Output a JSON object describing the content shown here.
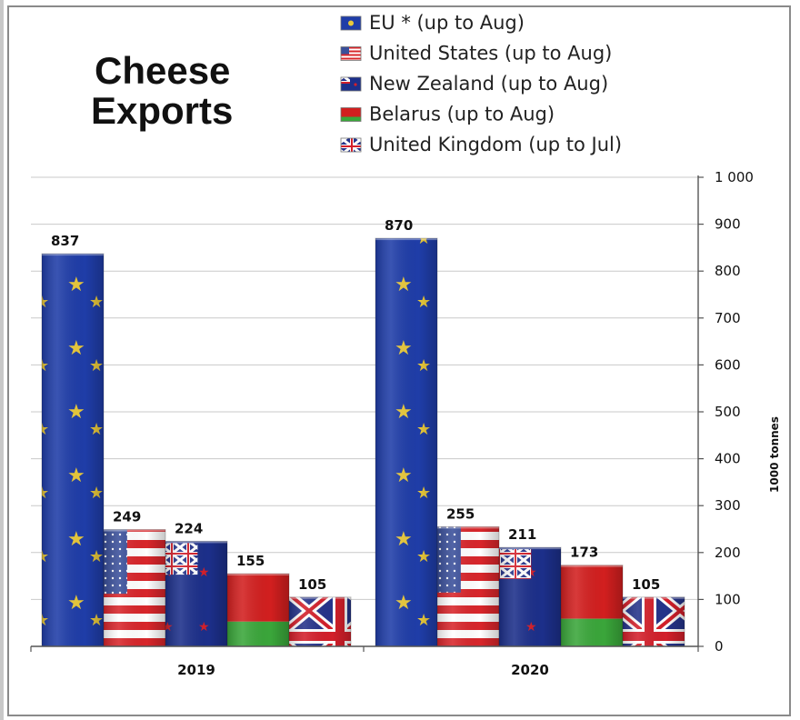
{
  "chart_data": {
    "type": "bar",
    "title_lines": [
      "Cheese",
      "Exports"
    ],
    "categories": [
      "2019",
      "2020"
    ],
    "series": [
      {
        "name": "EU * (up to Aug)",
        "flag": "eu-flag",
        "values": [
          837,
          870
        ]
      },
      {
        "name": "United States (up to Aug)",
        "flag": "us-flag",
        "values": [
          249,
          255
        ]
      },
      {
        "name": "New Zealand (up to Aug)",
        "flag": "nz-flag",
        "values": [
          224,
          211
        ]
      },
      {
        "name": "Belarus (up to Aug)",
        "flag": "belarus-flag",
        "values": [
          155,
          173
        ]
      },
      {
        "name": "United Kingdom (up to Jul)",
        "flag": "uk-flag",
        "values": [
          105,
          105
        ]
      }
    ],
    "xlabel": "",
    "ylabel": "1000 tonnes",
    "ylim": [
      0,
      1000
    ],
    "yticks": [
      0,
      100,
      200,
      300,
      400,
      500,
      600,
      700,
      800,
      900,
      1000
    ],
    "ytick_labels": [
      "0",
      "100",
      "200",
      "300",
      "400",
      "500",
      "600",
      "700",
      "800",
      "900",
      "1 000"
    ],
    "y_axis_side": "right",
    "grid": true,
    "legend_position": "top-right",
    "colors": {
      "eu_blue": "#1f3da8",
      "eu_star": "#e8c83a",
      "us_red": "#d8262b",
      "us_blue": "#3a4f9a",
      "nz_blue": "#1c2f8a",
      "belarus_red": "#d21f1f",
      "belarus_green": "#3aa63a",
      "uk_blue": "#25338a",
      "uk_red": "#d31f2a",
      "gridline": "#c9c9c9",
      "axis": "#555555"
    }
  }
}
